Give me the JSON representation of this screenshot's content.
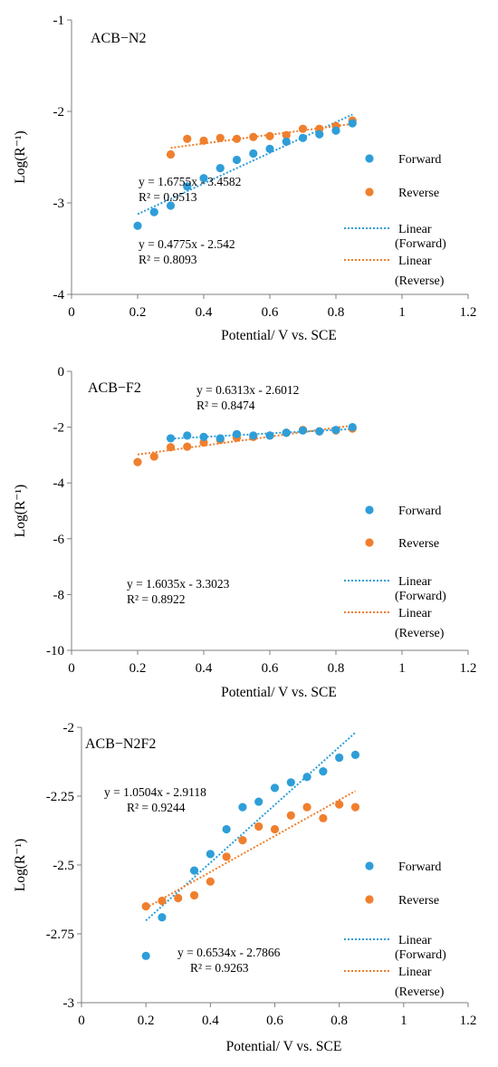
{
  "colors": {
    "forward": "#2e9ed8",
    "reverse": "#f07f2d",
    "axis": "#7f7f7f",
    "text": "#000000"
  },
  "chart_data": [
    {
      "type": "scatter",
      "title": "ACB−N2",
      "xlabel": "Potential/ V vs. SCE",
      "ylabel": "Log(R⁻¹)",
      "xlim": [
        0,
        1.2
      ],
      "ylim": [
        -4,
        -1
      ],
      "x_ticks": [
        "0",
        "0.2",
        "0.4",
        "0.6",
        "0.8",
        "1",
        "1.2"
      ],
      "y_ticks": [
        "-1",
        "-2",
        "-3",
        "-4"
      ],
      "legend_position": "right",
      "legend": [
        "Forward",
        "Reverse",
        "Linear",
        "(Forward)",
        "Linear",
        "(Reverse)"
      ],
      "series": [
        {
          "name": "Forward",
          "color": "forward",
          "x": [
            0.2,
            0.25,
            0.3,
            0.35,
            0.4,
            0.45,
            0.5,
            0.55,
            0.6,
            0.65,
            0.7,
            0.75,
            0.8,
            0.85
          ],
          "y": [
            -3.25,
            -3.1,
            -3.03,
            -2.82,
            -2.73,
            -2.62,
            -2.53,
            -2.46,
            -2.41,
            -2.33,
            -2.29,
            -2.25,
            -2.21,
            -2.13
          ]
        },
        {
          "name": "Reverse",
          "color": "reverse",
          "x": [
            0.3,
            0.35,
            0.4,
            0.45,
            0.5,
            0.55,
            0.6,
            0.65,
            0.7,
            0.75,
            0.8,
            0.85
          ],
          "y": [
            -2.47,
            -2.3,
            -2.32,
            -2.29,
            -2.3,
            -2.28,
            -2.27,
            -2.26,
            -2.19,
            -2.19,
            -2.16,
            -2.1
          ]
        }
      ],
      "trendlines": [
        {
          "name": "Linear (Forward)",
          "color": "forward",
          "slope": 1.6755,
          "intercept": -3.4582,
          "x_range": [
            0.2,
            0.85
          ],
          "equation": "y = 1.6755x - 3.4582",
          "r2": "R² = 0.9513"
        },
        {
          "name": "Linear (Reverse)",
          "color": "reverse",
          "slope": 0.4775,
          "intercept": -2.542,
          "x_range": [
            0.3,
            0.85
          ],
          "equation": "y = 0.4775x - 2.542",
          "r2": "R² = 0.8093"
        }
      ]
    },
    {
      "type": "scatter",
      "title": "ACB−F2",
      "xlabel": "Potential/ V vs. SCE",
      "ylabel": "Log(R⁻¹)",
      "xlim": [
        0,
        1.2
      ],
      "ylim": [
        -10,
        0
      ],
      "x_ticks": [
        "0",
        "0.2",
        "0.4",
        "0.6",
        "0.8",
        "1",
        "1.2"
      ],
      "y_ticks": [
        "0",
        "-2",
        "-4",
        "-6",
        "-8",
        "-10"
      ],
      "legend_position": "right",
      "legend": [
        "Forward",
        "Reverse",
        "Linear",
        "(Forward)",
        "Linear",
        "(Reverse)"
      ],
      "series": [
        {
          "name": "Forward",
          "color": "forward",
          "x": [
            0.3,
            0.35,
            0.4,
            0.45,
            0.5,
            0.55,
            0.6,
            0.65,
            0.7,
            0.75,
            0.8,
            0.85
          ],
          "y": [
            -2.4,
            -2.3,
            -2.35,
            -2.4,
            -2.25,
            -2.3,
            -2.3,
            -2.2,
            -2.12,
            -2.15,
            -2.1,
            -2.0
          ]
        },
        {
          "name": "Reverse",
          "color": "reverse",
          "x": [
            0.2,
            0.25,
            0.3,
            0.35,
            0.4,
            0.45,
            0.5,
            0.55,
            0.6,
            0.65,
            0.7,
            0.75,
            0.8,
            0.85
          ],
          "y": [
            -3.25,
            -3.05,
            -2.72,
            -2.7,
            -2.55,
            -2.45,
            -2.38,
            -2.35,
            -2.3,
            -2.2,
            -2.1,
            -2.15,
            -2.12,
            -2.05
          ]
        }
      ],
      "trendlines": [
        {
          "name": "Linear (Forward)",
          "color": "forward",
          "slope": 0.6313,
          "intercept": -2.6012,
          "x_range": [
            0.3,
            0.85
          ],
          "equation": "y = 0.6313x - 2.6012",
          "r2": "R² = 0.8474"
        },
        {
          "name": "Linear (Reverse)",
          "color": "reverse",
          "slope": 1.6035,
          "intercept": -3.3023,
          "x_range": [
            0.2,
            0.85
          ],
          "equation": "y = 1.6035x - 3.3023",
          "r2": "R² = 0.8922"
        }
      ]
    },
    {
      "type": "scatter",
      "title": "ACB−N2F2",
      "xlabel": "Potential/ V vs. SCE",
      "ylabel": "Log(R⁻¹)",
      "xlim": [
        0,
        1.2
      ],
      "ylim": [
        -3,
        -2
      ],
      "x_ticks": [
        "0",
        "0.2",
        "0.4",
        "0.6",
        "0.8",
        "1",
        "1.2"
      ],
      "y_ticks": [
        "-2",
        "-2.25",
        "-2.5",
        "-2.75",
        "-3"
      ],
      "legend_position": "right",
      "legend": [
        "Forward",
        "Reverse",
        "Linear",
        "(Forward)",
        "Linear",
        "(Reverse)"
      ],
      "series": [
        {
          "name": "Forward",
          "color": "forward",
          "x": [
            0.2,
            0.25,
            0.35,
            0.4,
            0.45,
            0.5,
            0.55,
            0.6,
            0.65,
            0.7,
            0.75,
            0.8,
            0.85
          ],
          "y": [
            -2.83,
            -2.69,
            -2.52,
            -2.46,
            -2.37,
            -2.29,
            -2.27,
            -2.22,
            -2.2,
            -2.18,
            -2.16,
            -2.11,
            -2.1
          ]
        },
        {
          "name": "Reverse",
          "color": "reverse",
          "x": [
            0.2,
            0.25,
            0.3,
            0.35,
            0.4,
            0.45,
            0.5,
            0.55,
            0.6,
            0.65,
            0.7,
            0.75,
            0.8,
            0.85
          ],
          "y": [
            -2.65,
            -2.63,
            -2.62,
            -2.61,
            -2.56,
            -2.47,
            -2.41,
            -2.36,
            -2.37,
            -2.32,
            -2.29,
            -2.33,
            -2.28,
            -2.29
          ]
        }
      ],
      "trendlines": [
        {
          "name": "Linear (Forward)",
          "color": "forward",
          "slope": 1.0504,
          "intercept": -2.9118,
          "x_range": [
            0.2,
            0.85
          ],
          "equation": "y = 1.0504x - 2.9118",
          "r2": "R² = 0.9244"
        },
        {
          "name": "Linear (Reverse)",
          "color": "reverse",
          "slope": 0.6534,
          "intercept": -2.7866,
          "x_range": [
            0.2,
            0.85
          ],
          "equation": "y = 0.6534x - 2.7866",
          "r2": "R² = 0.9263"
        }
      ]
    }
  ]
}
